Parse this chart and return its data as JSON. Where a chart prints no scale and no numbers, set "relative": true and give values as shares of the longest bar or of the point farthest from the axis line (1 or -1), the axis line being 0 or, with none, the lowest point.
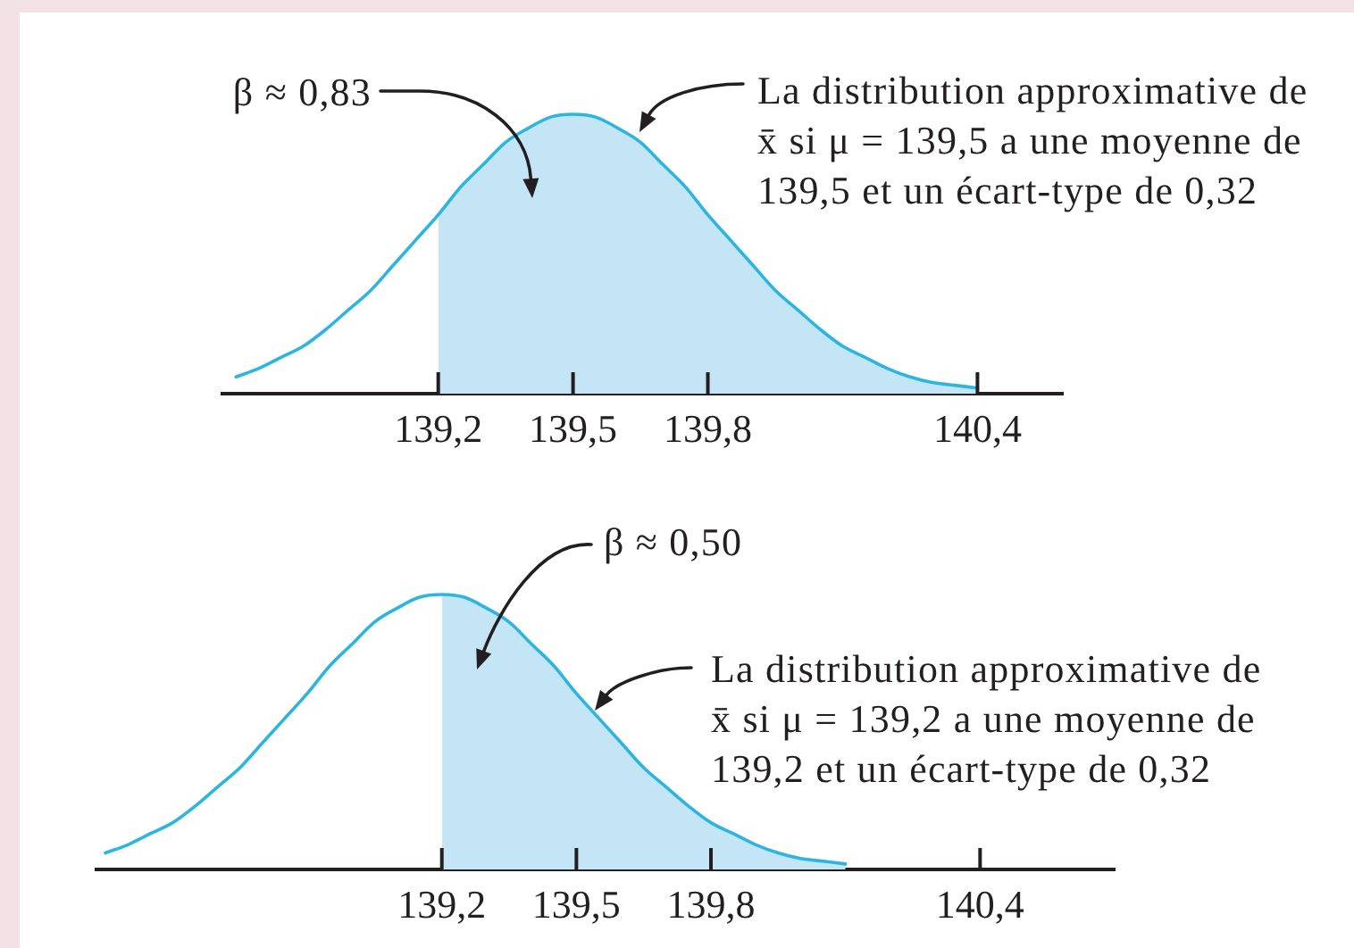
{
  "chart_data": [
    {
      "type": "line",
      "relative": true,
      "xlim": [
        138.72,
        140.59
      ],
      "xticks": [
        {
          "value": 139.2,
          "label": "139,2"
        },
        {
          "value": 139.5,
          "label": "139,5"
        },
        {
          "value": 139.8,
          "label": "139,8"
        },
        {
          "value": 140.4,
          "label": "140,4"
        }
      ],
      "series": [
        {
          "color": "#2cb5e0",
          "x": [
            138.75,
            138.8,
            138.85,
            138.9,
            138.95,
            139,
            139.05,
            139.1,
            139.15,
            139.2,
            139.25,
            139.3,
            139.35,
            139.4,
            139.45,
            139.5,
            139.55,
            139.6,
            139.65,
            139.7,
            139.75,
            139.8,
            139.85,
            139.9,
            139.95,
            140,
            140.05,
            140.1,
            140.15,
            140.2,
            140.25,
            140.3,
            140.35,
            140.4
          ],
          "values": [
            0.06,
            0.09,
            0.13,
            0.17,
            0.23,
            0.3,
            0.37,
            0.46,
            0.55,
            0.64,
            0.74,
            0.82,
            0.9,
            0.95,
            0.99,
            1,
            0.99,
            0.95,
            0.9,
            0.82,
            0.74,
            0.64,
            0.55,
            0.46,
            0.37,
            0.3,
            0.23,
            0.17,
            0.13,
            0.09,
            0.06,
            0.04,
            0.03,
            0.02
          ]
        },
        {
          "type": "area",
          "color": "#c3e5f5",
          "x": [
            139.2,
            139.25,
            139.3,
            139.35,
            139.4,
            139.45,
            139.5,
            139.55,
            139.6,
            139.65,
            139.7,
            139.75,
            139.8,
            139.85,
            139.9,
            139.95,
            140,
            140.05,
            140.1,
            140.15,
            140.2,
            140.25,
            140.3,
            140.35,
            140.4
          ],
          "values": [
            0.64,
            0.74,
            0.82,
            0.9,
            0.95,
            0.99,
            1,
            0.99,
            0.95,
            0.9,
            0.82,
            0.74,
            0.64,
            0.55,
            0.46,
            0.37,
            0.3,
            0.23,
            0.17,
            0.13,
            0.09,
            0.06,
            0.04,
            0.03,
            0.02
          ]
        }
      ],
      "annotations": [
        "β ≈ 0,83",
        "La distribution approximative de\nx̄ si μ = 139,5 a une moyenne de\n139,5 et un écart-type de 0,32"
      ]
    },
    {
      "type": "line",
      "relative": true,
      "xlim": [
        138.43,
        140.7
      ],
      "xticks": [
        {
          "value": 139.2,
          "label": "139,2"
        },
        {
          "value": 139.5,
          "label": "139,5"
        },
        {
          "value": 139.8,
          "label": "139,8"
        },
        {
          "value": 140.4,
          "label": "140,4"
        }
      ],
      "series": [
        {
          "color": "#2cb5e0",
          "x": [
            138.45,
            138.5,
            138.55,
            138.6,
            138.65,
            138.7,
            138.75,
            138.8,
            138.85,
            138.9,
            138.95,
            139,
            139.05,
            139.1,
            139.15,
            139.2,
            139.25,
            139.3,
            139.35,
            139.4,
            139.45,
            139.5,
            139.55,
            139.6,
            139.65,
            139.7,
            139.75,
            139.8,
            139.85,
            139.9,
            139.95,
            140,
            140.05,
            140.1
          ],
          "values": [
            0.06,
            0.09,
            0.13,
            0.17,
            0.23,
            0.3,
            0.37,
            0.46,
            0.55,
            0.64,
            0.74,
            0.82,
            0.9,
            0.95,
            0.99,
            1,
            0.99,
            0.95,
            0.9,
            0.82,
            0.74,
            0.64,
            0.55,
            0.46,
            0.37,
            0.3,
            0.23,
            0.17,
            0.13,
            0.09,
            0.06,
            0.04,
            0.03,
            0.02
          ]
        },
        {
          "type": "area",
          "color": "#c3e5f5",
          "x": [
            139.2,
            139.25,
            139.3,
            139.35,
            139.4,
            139.45,
            139.5,
            139.55,
            139.6,
            139.65,
            139.7,
            139.75,
            139.8,
            139.85,
            139.9,
            139.95,
            140,
            140.05,
            140.1
          ],
          "values": [
            1,
            0.99,
            0.95,
            0.9,
            0.82,
            0.74,
            0.64,
            0.55,
            0.46,
            0.37,
            0.3,
            0.23,
            0.17,
            0.13,
            0.09,
            0.06,
            0.04,
            0.03,
            0.02
          ]
        }
      ],
      "annotations": [
        "β ≈ 0,50",
        "La distribution approximative de\nx̄ si μ = 139,2 a une moyenne de\n139,2 et un écart-type de 0,32"
      ]
    }
  ]
}
